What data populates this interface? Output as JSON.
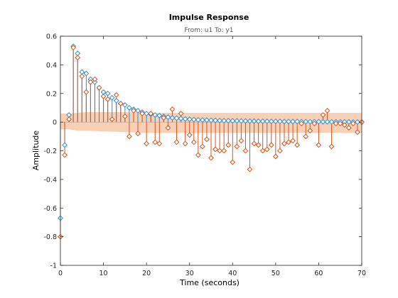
{
  "chart_data": {
    "type": "stem",
    "title": "Impulse Response",
    "subtitle": "From: u1  To: y1",
    "xlabel": "Time (seconds)",
    "ylabel": "Amplitude",
    "xlim": [
      0,
      70
    ],
    "ylim": [
      -1,
      0.6
    ],
    "xticks": [
      0,
      10,
      20,
      30,
      40,
      50,
      60,
      70
    ],
    "yticks": [
      -1,
      -0.8,
      -0.6,
      -0.4,
      -0.2,
      0,
      0.2,
      0.4,
      0.6
    ],
    "xtick_labels": [
      "0",
      "10",
      "20",
      "30",
      "40",
      "50",
      "60",
      "70"
    ],
    "ytick_labels": [
      "-1",
      "-0.8",
      "-0.6",
      "-0.4",
      "-0.2",
      "0",
      "0.2",
      "0.4",
      "0.6"
    ],
    "grid": false,
    "colors": {
      "series_blue": "#2c8fcf",
      "series_orange": "#d95319",
      "confidence_band": "#f6c8a8"
    },
    "confidence_band": {
      "x": [
        0,
        2,
        4,
        6,
        10,
        15,
        20,
        30,
        40,
        50,
        60,
        70
      ],
      "upper": [
        0.06,
        0.06,
        0.065,
        0.07,
        0.07,
        0.07,
        0.065,
        0.065,
        0.065,
        0.065,
        0.065,
        0.065
      ],
      "lower": [
        -0.05,
        -0.05,
        -0.06,
        -0.06,
        -0.065,
        -0.07,
        -0.075,
        -0.075,
        -0.075,
        -0.075,
        -0.075,
        -0.075
      ]
    },
    "series": [
      {
        "x": [
          0,
          1,
          2,
          3,
          4,
          5,
          6,
          7,
          8,
          9,
          10,
          11,
          12,
          13,
          14,
          15,
          16,
          17,
          18,
          19,
          20,
          21,
          22,
          23,
          24,
          25,
          26,
          27,
          28,
          29,
          30,
          31,
          32,
          33,
          34,
          35,
          36,
          37,
          38,
          39,
          40,
          41,
          42,
          43,
          44,
          45,
          46,
          47,
          48,
          49,
          50,
          51,
          52,
          53,
          54,
          55,
          56,
          57,
          58,
          59,
          60,
          61,
          62,
          63,
          64,
          65,
          66,
          67,
          68,
          69,
          70
        ],
        "values": [
          -0.67,
          -0.16,
          0.05,
          0.53,
          0.48,
          0.35,
          0.34,
          0.3,
          0.28,
          0.24,
          0.21,
          0.2,
          0.17,
          0.15,
          0.13,
          0.12,
          0.1,
          0.09,
          0.08,
          0.07,
          0.06,
          0.055,
          0.05,
          0.045,
          0.04,
          0.035,
          0.03,
          0.028,
          0.025,
          0.022,
          0.02,
          0.018,
          0.016,
          0.015,
          0.014,
          0.013,
          0.012,
          0.011,
          0.01,
          0.01,
          0.009,
          0.009,
          0.008,
          0.008,
          0.007,
          0.007,
          0.006,
          0.006,
          0.006,
          0.005,
          0.005,
          0.005,
          0.004,
          0.004,
          0.004,
          0.004,
          0.003,
          0.003,
          0.003,
          0.003,
          0.003,
          0.002,
          0.002,
          0.002,
          0.002,
          0.002,
          0.002,
          0.002,
          0.001,
          0.001,
          0.001
        ]
      },
      {
        "x": [
          0,
          1,
          2,
          3,
          4,
          5,
          6,
          7,
          8,
          9,
          10,
          11,
          12,
          13,
          14,
          15,
          16,
          17,
          18,
          19,
          20,
          21,
          22,
          23,
          24,
          25,
          26,
          27,
          28,
          29,
          30,
          31,
          32,
          33,
          34,
          35,
          36,
          37,
          38,
          39,
          40,
          41,
          42,
          43,
          44,
          45,
          46,
          47,
          48,
          49,
          50,
          51,
          52,
          53,
          54,
          55,
          56,
          57,
          58,
          59,
          60,
          61,
          62,
          63,
          64,
          65,
          66,
          67,
          68,
          69,
          70
        ],
        "values": [
          -0.8,
          -0.23,
          0.02,
          0.52,
          0.45,
          0.32,
          0.21,
          0.28,
          0.3,
          0.24,
          0.18,
          0.16,
          0.02,
          0.19,
          0.13,
          0.04,
          -0.1,
          0.08,
          -0.08,
          0.06,
          -0.15,
          0.06,
          -0.14,
          -0.15,
          0.03,
          -0.04,
          0.09,
          -0.14,
          0.06,
          -0.15,
          -0.09,
          -0.14,
          -0.23,
          -0.17,
          -0.12,
          -0.25,
          -0.19,
          -0.2,
          -0.2,
          -0.16,
          -0.28,
          -0.17,
          -0.13,
          -0.2,
          -0.33,
          -0.15,
          -0.16,
          -0.2,
          -0.19,
          -0.16,
          -0.24,
          -0.2,
          -0.15,
          -0.14,
          -0.13,
          -0.16,
          -0.01,
          -0.1,
          -0.06,
          -0.01,
          -0.16,
          0.05,
          0.08,
          -0.17,
          -0.01,
          -0.01,
          -0.02,
          -0.04,
          -0.01,
          -0.07,
          0.0
        ]
      }
    ]
  }
}
